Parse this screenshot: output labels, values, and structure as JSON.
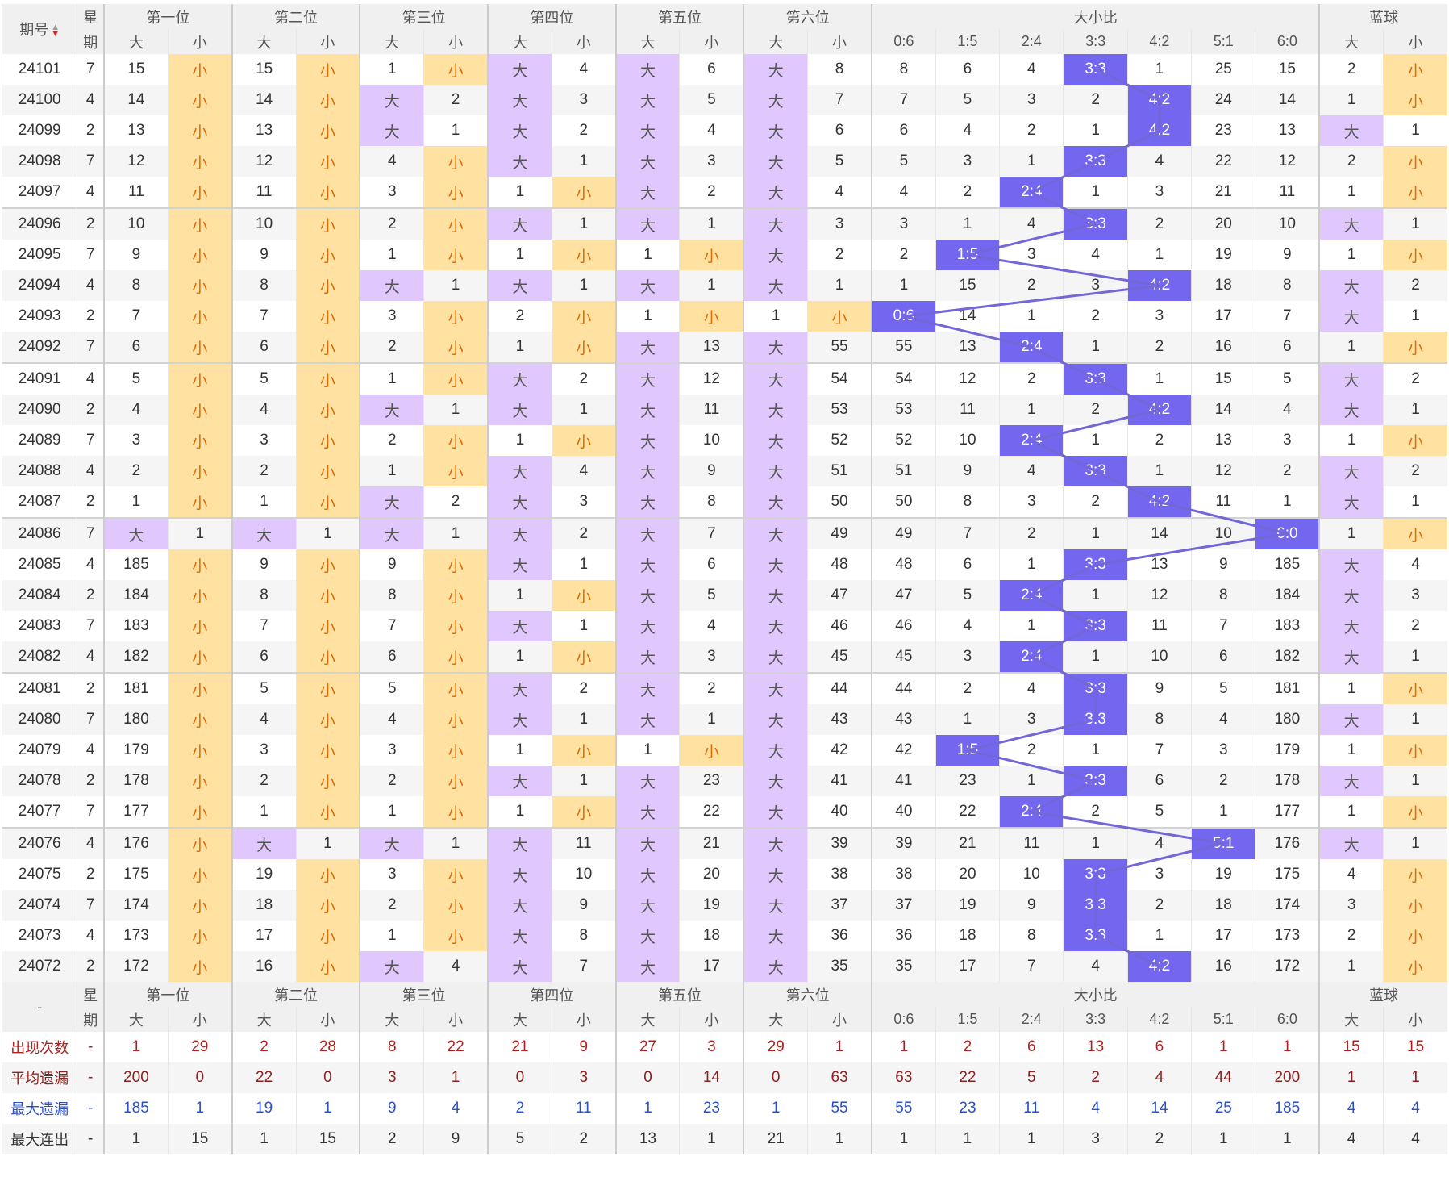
{
  "header": {
    "issue_label": "期号",
    "week_label_top": "星",
    "week_label_bottom": "期",
    "positions": [
      "第一位",
      "第二位",
      "第三位",
      "第四位",
      "第五位",
      "第六位"
    ],
    "ratio_group": "大小比",
    "blue_group": "蓝球",
    "big": "大",
    "small": "小",
    "ratios": [
      "0:6",
      "1:5",
      "2:4",
      "3:3",
      "4:2",
      "5:1",
      "6:0"
    ]
  },
  "rows": [
    {
      "issue": "24101",
      "week": "7",
      "pos": [
        [
          15,
          "S"
        ],
        [
          15,
          "S"
        ],
        [
          1,
          "S"
        ],
        [
          "B",
          4
        ],
        [
          "B",
          6
        ],
        [
          "B",
          8
        ]
      ],
      "ratio": [
        8,
        6,
        4,
        "3:3",
        1,
        25,
        15
      ],
      "blue": [
        2,
        "S"
      ]
    },
    {
      "issue": "24100",
      "week": "4",
      "pos": [
        [
          14,
          "S"
        ],
        [
          14,
          "S"
        ],
        [
          "B",
          2
        ],
        [
          "B",
          3
        ],
        [
          "B",
          5
        ],
        [
          "B",
          7
        ]
      ],
      "ratio": [
        7,
        5,
        3,
        2,
        "4:2",
        24,
        14
      ],
      "blue": [
        1,
        "S"
      ]
    },
    {
      "issue": "24099",
      "week": "2",
      "pos": [
        [
          13,
          "S"
        ],
        [
          13,
          "S"
        ],
        [
          "B",
          1
        ],
        [
          "B",
          2
        ],
        [
          "B",
          4
        ],
        [
          "B",
          6
        ]
      ],
      "ratio": [
        6,
        4,
        2,
        1,
        "4:2",
        23,
        13
      ],
      "blue": [
        "B",
        1
      ]
    },
    {
      "issue": "24098",
      "week": "7",
      "pos": [
        [
          12,
          "S"
        ],
        [
          12,
          "S"
        ],
        [
          4,
          "S"
        ],
        [
          "B",
          1
        ],
        [
          "B",
          3
        ],
        [
          "B",
          5
        ]
      ],
      "ratio": [
        5,
        3,
        1,
        "3:3",
        4,
        22,
        12
      ],
      "blue": [
        2,
        "S"
      ]
    },
    {
      "issue": "24097",
      "week": "4",
      "pos": [
        [
          11,
          "S"
        ],
        [
          11,
          "S"
        ],
        [
          3,
          "S"
        ],
        [
          1,
          "S"
        ],
        [
          "B",
          2
        ],
        [
          "B",
          4
        ]
      ],
      "ratio": [
        4,
        2,
        "2:4",
        1,
        3,
        21,
        11
      ],
      "blue": [
        1,
        "S"
      ]
    },
    {
      "issue": "24096",
      "week": "2",
      "pos": [
        [
          10,
          "S"
        ],
        [
          10,
          "S"
        ],
        [
          2,
          "S"
        ],
        [
          "B",
          1
        ],
        [
          "B",
          1
        ],
        [
          "B",
          3
        ]
      ],
      "ratio": [
        3,
        1,
        4,
        "3:3",
        2,
        20,
        10
      ],
      "blue": [
        "B",
        1
      ]
    },
    {
      "issue": "24095",
      "week": "7",
      "pos": [
        [
          9,
          "S"
        ],
        [
          9,
          "S"
        ],
        [
          1,
          "S"
        ],
        [
          1,
          "S"
        ],
        [
          1,
          "S"
        ],
        [
          "B",
          2
        ]
      ],
      "ratio": [
        2,
        "1:5",
        3,
        4,
        1,
        19,
        9
      ],
      "blue": [
        1,
        "S"
      ]
    },
    {
      "issue": "24094",
      "week": "4",
      "pos": [
        [
          8,
          "S"
        ],
        [
          8,
          "S"
        ],
        [
          "B",
          1
        ],
        [
          "B",
          1
        ],
        [
          "B",
          1
        ],
        [
          "B",
          1
        ]
      ],
      "ratio": [
        1,
        15,
        2,
        3,
        "4:2",
        18,
        8
      ],
      "blue": [
        "B",
        2
      ]
    },
    {
      "issue": "24093",
      "week": "2",
      "pos": [
        [
          7,
          "S"
        ],
        [
          7,
          "S"
        ],
        [
          3,
          "S"
        ],
        [
          2,
          "S"
        ],
        [
          1,
          "S"
        ],
        [
          1,
          "S"
        ]
      ],
      "ratio": [
        "0:6",
        14,
        1,
        2,
        3,
        17,
        7
      ],
      "blue": [
        "B",
        1
      ]
    },
    {
      "issue": "24092",
      "week": "7",
      "pos": [
        [
          6,
          "S"
        ],
        [
          6,
          "S"
        ],
        [
          2,
          "S"
        ],
        [
          1,
          "S"
        ],
        [
          "B",
          13
        ],
        [
          "B",
          55
        ]
      ],
      "ratio": [
        55,
        13,
        "2:4",
        1,
        2,
        16,
        6
      ],
      "blue": [
        1,
        "S"
      ]
    },
    {
      "issue": "24091",
      "week": "4",
      "pos": [
        [
          5,
          "S"
        ],
        [
          5,
          "S"
        ],
        [
          1,
          "S"
        ],
        [
          "B",
          2
        ],
        [
          "B",
          12
        ],
        [
          "B",
          54
        ]
      ],
      "ratio": [
        54,
        12,
        2,
        "3:3",
        1,
        15,
        5
      ],
      "blue": [
        "B",
        2
      ]
    },
    {
      "issue": "24090",
      "week": "2",
      "pos": [
        [
          4,
          "S"
        ],
        [
          4,
          "S"
        ],
        [
          "B",
          1
        ],
        [
          "B",
          1
        ],
        [
          "B",
          11
        ],
        [
          "B",
          53
        ]
      ],
      "ratio": [
        53,
        11,
        1,
        2,
        "4:2",
        14,
        4
      ],
      "blue": [
        "B",
        1
      ]
    },
    {
      "issue": "24089",
      "week": "7",
      "pos": [
        [
          3,
          "S"
        ],
        [
          3,
          "S"
        ],
        [
          2,
          "S"
        ],
        [
          1,
          "S"
        ],
        [
          "B",
          10
        ],
        [
          "B",
          52
        ]
      ],
      "ratio": [
        52,
        10,
        "2:4",
        1,
        2,
        13,
        3
      ],
      "blue": [
        1,
        "S"
      ]
    },
    {
      "issue": "24088",
      "week": "4",
      "pos": [
        [
          2,
          "S"
        ],
        [
          2,
          "S"
        ],
        [
          1,
          "S"
        ],
        [
          "B",
          4
        ],
        [
          "B",
          9
        ],
        [
          "B",
          51
        ]
      ],
      "ratio": [
        51,
        9,
        4,
        "3:3",
        1,
        12,
        2
      ],
      "blue": [
        "B",
        2
      ]
    },
    {
      "issue": "24087",
      "week": "2",
      "pos": [
        [
          1,
          "S"
        ],
        [
          1,
          "S"
        ],
        [
          "B",
          2
        ],
        [
          "B",
          3
        ],
        [
          "B",
          8
        ],
        [
          "B",
          50
        ]
      ],
      "ratio": [
        50,
        8,
        3,
        2,
        "4:2",
        11,
        1
      ],
      "blue": [
        "B",
        1
      ]
    },
    {
      "issue": "24086",
      "week": "7",
      "pos": [
        [
          "B",
          1
        ],
        [
          "B",
          1
        ],
        [
          "B",
          1
        ],
        [
          "B",
          2
        ],
        [
          "B",
          7
        ],
        [
          "B",
          49
        ]
      ],
      "ratio": [
        49,
        7,
        2,
        1,
        14,
        10,
        "6:0"
      ],
      "blue": [
        1,
        "S"
      ]
    },
    {
      "issue": "24085",
      "week": "4",
      "pos": [
        [
          185,
          "S"
        ],
        [
          9,
          "S"
        ],
        [
          9,
          "S"
        ],
        [
          "B",
          1
        ],
        [
          "B",
          6
        ],
        [
          "B",
          48
        ]
      ],
      "ratio": [
        48,
        6,
        1,
        "3:3",
        13,
        9,
        185
      ],
      "blue": [
        "B",
        4
      ]
    },
    {
      "issue": "24084",
      "week": "2",
      "pos": [
        [
          184,
          "S"
        ],
        [
          8,
          "S"
        ],
        [
          8,
          "S"
        ],
        [
          1,
          "S"
        ],
        [
          "B",
          5
        ],
        [
          "B",
          47
        ]
      ],
      "ratio": [
        47,
        5,
        "2:4",
        1,
        12,
        8,
        184
      ],
      "blue": [
        "B",
        3
      ]
    },
    {
      "issue": "24083",
      "week": "7",
      "pos": [
        [
          183,
          "S"
        ],
        [
          7,
          "S"
        ],
        [
          7,
          "S"
        ],
        [
          "B",
          1
        ],
        [
          "B",
          4
        ],
        [
          "B",
          46
        ]
      ],
      "ratio": [
        46,
        4,
        1,
        "3:3",
        11,
        7,
        183
      ],
      "blue": [
        "B",
        2
      ]
    },
    {
      "issue": "24082",
      "week": "4",
      "pos": [
        [
          182,
          "S"
        ],
        [
          6,
          "S"
        ],
        [
          6,
          "S"
        ],
        [
          1,
          "S"
        ],
        [
          "B",
          3
        ],
        [
          "B",
          45
        ]
      ],
      "ratio": [
        45,
        3,
        "2:4",
        1,
        10,
        6,
        182
      ],
      "blue": [
        "B",
        1
      ]
    },
    {
      "issue": "24081",
      "week": "2",
      "pos": [
        [
          181,
          "S"
        ],
        [
          5,
          "S"
        ],
        [
          5,
          "S"
        ],
        [
          "B",
          2
        ],
        [
          "B",
          2
        ],
        [
          "B",
          44
        ]
      ],
      "ratio": [
        44,
        2,
        4,
        "3:3",
        9,
        5,
        181
      ],
      "blue": [
        1,
        "S"
      ]
    },
    {
      "issue": "24080",
      "week": "7",
      "pos": [
        [
          180,
          "S"
        ],
        [
          4,
          "S"
        ],
        [
          4,
          "S"
        ],
        [
          "B",
          1
        ],
        [
          "B",
          1
        ],
        [
          "B",
          43
        ]
      ],
      "ratio": [
        43,
        1,
        3,
        "3:3",
        8,
        4,
        180
      ],
      "blue": [
        "B",
        1
      ]
    },
    {
      "issue": "24079",
      "week": "4",
      "pos": [
        [
          179,
          "S"
        ],
        [
          3,
          "S"
        ],
        [
          3,
          "S"
        ],
        [
          1,
          "S"
        ],
        [
          1,
          "S"
        ],
        [
          "B",
          42
        ]
      ],
      "ratio": [
        42,
        "1:5",
        2,
        1,
        7,
        3,
        179
      ],
      "blue": [
        1,
        "S"
      ]
    },
    {
      "issue": "24078",
      "week": "2",
      "pos": [
        [
          178,
          "S"
        ],
        [
          2,
          "S"
        ],
        [
          2,
          "S"
        ],
        [
          "B",
          1
        ],
        [
          "B",
          23
        ],
        [
          "B",
          41
        ]
      ],
      "ratio": [
        41,
        23,
        1,
        "3:3",
        6,
        2,
        178
      ],
      "blue": [
        "B",
        1
      ]
    },
    {
      "issue": "24077",
      "week": "7",
      "pos": [
        [
          177,
          "S"
        ],
        [
          1,
          "S"
        ],
        [
          1,
          "S"
        ],
        [
          1,
          "S"
        ],
        [
          "B",
          22
        ],
        [
          "B",
          40
        ]
      ],
      "ratio": [
        40,
        22,
        "2:4",
        2,
        5,
        1,
        177
      ],
      "blue": [
        1,
        "S"
      ]
    },
    {
      "issue": "24076",
      "week": "4",
      "pos": [
        [
          176,
          "S"
        ],
        [
          "B",
          1
        ],
        [
          "B",
          1
        ],
        [
          "B",
          11
        ],
        [
          "B",
          21
        ],
        [
          "B",
          39
        ]
      ],
      "ratio": [
        39,
        21,
        11,
        1,
        4,
        "5:1",
        176
      ],
      "blue": [
        "B",
        1
      ]
    },
    {
      "issue": "24075",
      "week": "2",
      "pos": [
        [
          175,
          "S"
        ],
        [
          19,
          "S"
        ],
        [
          3,
          "S"
        ],
        [
          "B",
          10
        ],
        [
          "B",
          20
        ],
        [
          "B",
          38
        ]
      ],
      "ratio": [
        38,
        20,
        10,
        "3:3",
        3,
        19,
        175
      ],
      "blue": [
        4,
        "S"
      ]
    },
    {
      "issue": "24074",
      "week": "7",
      "pos": [
        [
          174,
          "S"
        ],
        [
          18,
          "S"
        ],
        [
          2,
          "S"
        ],
        [
          "B",
          9
        ],
        [
          "B",
          19
        ],
        [
          "B",
          37
        ]
      ],
      "ratio": [
        37,
        19,
        9,
        "3:3",
        2,
        18,
        174
      ],
      "blue": [
        3,
        "S"
      ]
    },
    {
      "issue": "24073",
      "week": "4",
      "pos": [
        [
          173,
          "S"
        ],
        [
          17,
          "S"
        ],
        [
          1,
          "S"
        ],
        [
          "B",
          8
        ],
        [
          "B",
          18
        ],
        [
          "B",
          36
        ]
      ],
      "ratio": [
        36,
        18,
        8,
        "3:3",
        1,
        17,
        173
      ],
      "blue": [
        2,
        "S"
      ]
    },
    {
      "issue": "24072",
      "week": "2",
      "pos": [
        [
          172,
          "S"
        ],
        [
          16,
          "S"
        ],
        [
          "B",
          4
        ],
        [
          "B",
          7
        ],
        [
          "B",
          17
        ],
        [
          "B",
          35
        ]
      ],
      "ratio": [
        35,
        17,
        7,
        4,
        "4:2",
        16,
        172
      ],
      "blue": [
        1,
        "S"
      ]
    }
  ],
  "footer_header": {
    "dash": "-"
  },
  "stats": [
    {
      "label": "出现次数",
      "cls": "r-count",
      "week": "-",
      "values": [
        1,
        29,
        2,
        28,
        8,
        22,
        21,
        9,
        27,
        3,
        29,
        1,
        1,
        2,
        6,
        13,
        6,
        1,
        1,
        15,
        15
      ]
    },
    {
      "label": "平均遗漏",
      "cls": "r-avg",
      "week": "-",
      "values": [
        200,
        0,
        22,
        0,
        3,
        1,
        0,
        3,
        0,
        14,
        0,
        63,
        63,
        22,
        5,
        2,
        4,
        44,
        200,
        1,
        1
      ]
    },
    {
      "label": "最大遗漏",
      "cls": "r-max",
      "week": "-",
      "values": [
        185,
        1,
        19,
        1,
        9,
        4,
        2,
        11,
        1,
        23,
        1,
        55,
        55,
        23,
        11,
        4,
        14,
        25,
        185,
        4,
        4
      ]
    },
    {
      "label": "最大连出",
      "cls": "r-con",
      "week": "-",
      "values": [
        1,
        15,
        1,
        15,
        2,
        9,
        5,
        2,
        13,
        1,
        21,
        1,
        1,
        1,
        1,
        3,
        2,
        1,
        1,
        4,
        4
      ]
    }
  ],
  "colors": {
    "big": "#e0c8ff",
    "small": "#ffe1a1",
    "ratio": "#7367f0",
    "line": "#7367d8"
  }
}
